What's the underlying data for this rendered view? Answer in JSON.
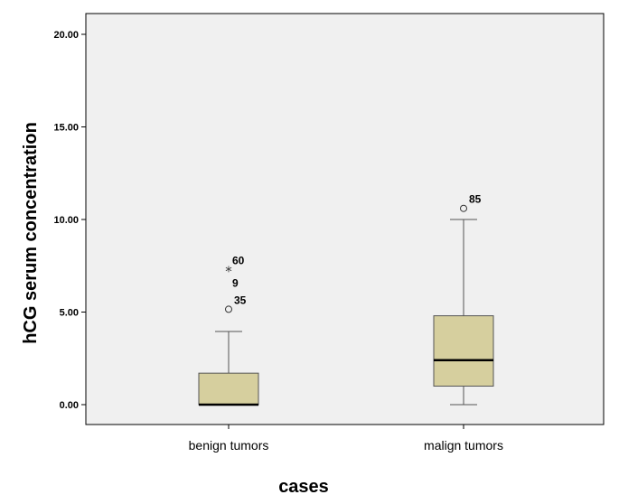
{
  "chart_data": {
    "type": "boxplot",
    "xlabel": "cases",
    "ylabel": "hCG serum concentration",
    "ylim": [
      -1.0,
      21.0
    ],
    "yticks": [
      0,
      5,
      10,
      15,
      20
    ],
    "ytick_labels": [
      "0.00",
      "5.00",
      "10.00",
      "15.00",
      "20.00"
    ],
    "grid": false,
    "colors": {
      "box_fill": "#d6cf9e",
      "plot_bg": "#f0f0f0",
      "median": "#000000"
    },
    "categories": [
      "benign tumors",
      "malign tumors"
    ],
    "boxes": [
      {
        "category": "benign tumors",
        "whisker_low": 0.0,
        "q1": 0.0,
        "median": 0.0,
        "q3": 1.7,
        "whisker_high": 3.95,
        "outliers": [
          {
            "value": 5.15,
            "label": "35",
            "marker": "circle"
          },
          {
            "value": 7.25,
            "label": "60",
            "marker": "star"
          },
          {
            "value": 7.2,
            "label": "9",
            "marker": "star"
          }
        ]
      },
      {
        "category": "malign tumors",
        "whisker_low": 0.0,
        "q1": 1.0,
        "median": 2.4,
        "q3": 4.8,
        "whisker_high": 10.0,
        "outliers": [
          {
            "value": 10.6,
            "label": "85",
            "marker": "circle"
          }
        ]
      }
    ]
  }
}
